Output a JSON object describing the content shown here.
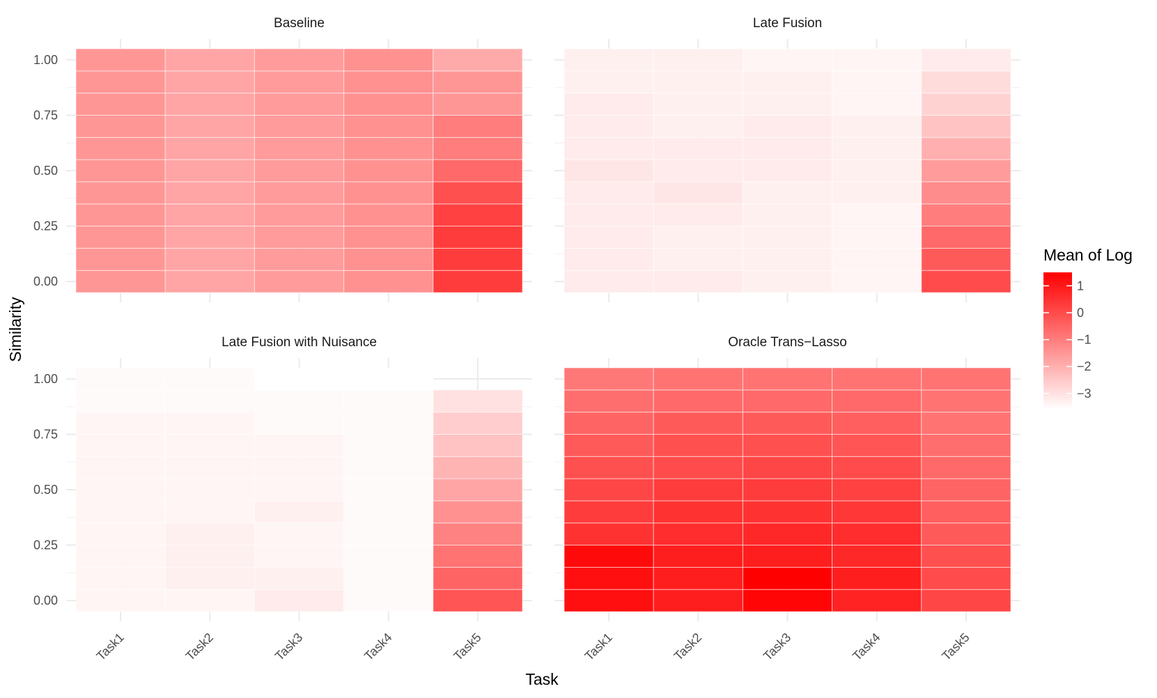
{
  "figure": {
    "ylabel": "Similarity",
    "xlabel": "Task",
    "legend_title": "Mean of Log",
    "legend_ticks": [
      "1",
      "0",
      "−1",
      "−2",
      "−3"
    ]
  },
  "chart_data": {
    "type": "heatmap",
    "x_categories": [
      "Task1",
      "Task2",
      "Task3",
      "Task4",
      "Task5"
    ],
    "y_values": [
      0,
      0.1,
      0.2,
      0.3,
      0.4,
      0.5,
      0.6,
      0.7,
      0.8,
      0.9,
      1.0
    ],
    "y_ticks": [
      0,
      0.25,
      0.5,
      0.75,
      1.0
    ],
    "y_tick_labels": [
      "0.00",
      "0.25",
      "0.50",
      "0.75",
      "1.00"
    ],
    "xlabel": "Task",
    "ylabel": "Similarity",
    "color_scale": {
      "title": "Mean of Log",
      "low": -3.6,
      "high": 1.5,
      "low_color": "#ffffff",
      "high_color": "#ff0000",
      "legend_ticks": [
        1,
        0,
        -1,
        -2,
        -3
      ]
    },
    "grid": true,
    "legend_position": "right",
    "facets": [
      {
        "title": "Baseline",
        "values": [
          [
            -1.5,
            -1.8,
            -1.6,
            -1.4,
            0.3
          ],
          [
            -1.5,
            -1.8,
            -1.6,
            -1.4,
            0.3
          ],
          [
            -1.5,
            -1.8,
            -1.6,
            -1.4,
            0.3
          ],
          [
            -1.5,
            -1.8,
            -1.6,
            -1.4,
            0.2
          ],
          [
            -1.5,
            -1.8,
            -1.6,
            -1.4,
            -0.1
          ],
          [
            -1.5,
            -1.8,
            -1.6,
            -1.4,
            -0.6
          ],
          [
            -1.5,
            -1.8,
            -1.6,
            -1.4,
            -1.0
          ],
          [
            -1.5,
            -1.8,
            -1.6,
            -1.4,
            -1.0
          ],
          [
            -1.5,
            -1.8,
            -1.6,
            -1.4,
            -1.5
          ],
          [
            -1.5,
            -1.8,
            -1.6,
            -1.4,
            -1.5
          ],
          [
            -1.5,
            -1.8,
            -1.6,
            -1.4,
            -1.9
          ]
        ]
      },
      {
        "title": "Late Fusion",
        "values": [
          [
            -3.2,
            -3.2,
            -3.3,
            -3.4,
            0.0
          ],
          [
            -3.2,
            -3.3,
            -3.3,
            -3.4,
            -0.3
          ],
          [
            -3.2,
            -3.3,
            -3.3,
            -3.4,
            -0.6
          ],
          [
            -3.2,
            -3.2,
            -3.3,
            -3.4,
            -1.0
          ],
          [
            -3.2,
            -3.1,
            -3.3,
            -3.3,
            -1.3
          ],
          [
            -3.1,
            -3.2,
            -3.2,
            -3.3,
            -1.6
          ],
          [
            -3.2,
            -3.2,
            -3.2,
            -3.3,
            -2.0
          ],
          [
            -3.2,
            -3.3,
            -3.2,
            -3.3,
            -2.4
          ],
          [
            -3.2,
            -3.3,
            -3.3,
            -3.4,
            -2.7
          ],
          [
            -3.3,
            -3.3,
            -3.3,
            -3.4,
            -2.9
          ],
          [
            -3.3,
            -3.3,
            -3.4,
            -3.4,
            -3.2
          ]
        ]
      },
      {
        "title": "Late Fusion with Nuisance",
        "values": [
          [
            -3.4,
            -3.4,
            -3.2,
            -3.5,
            -0.2
          ],
          [
            -3.4,
            -3.3,
            -3.3,
            -3.5,
            -0.5
          ],
          [
            -3.4,
            -3.3,
            -3.4,
            -3.5,
            -0.8
          ],
          [
            -3.4,
            -3.3,
            -3.4,
            -3.5,
            -1.1
          ],
          [
            -3.4,
            -3.4,
            -3.3,
            -3.5,
            -1.4
          ],
          [
            -3.4,
            -3.4,
            -3.4,
            -3.5,
            -1.8
          ],
          [
            -3.4,
            -3.4,
            -3.4,
            -3.5,
            -2.1
          ],
          [
            -3.4,
            -3.4,
            -3.4,
            -3.5,
            -2.4
          ],
          [
            -3.4,
            -3.4,
            -3.5,
            -3.5,
            -2.6
          ],
          [
            -3.5,
            -3.5,
            -3.5,
            -3.5,
            -3.0
          ],
          [
            -3.5,
            -3.5,
            -3.6,
            -3.6,
            null
          ]
        ]
      },
      {
        "title": "Oracle Trans−Lasso",
        "values": [
          [
            1.2,
            0.9,
            1.4,
            0.8,
            0.1
          ],
          [
            1.2,
            0.9,
            1.5,
            0.9,
            0.0
          ],
          [
            1.3,
            0.9,
            0.9,
            0.7,
            -0.1
          ],
          [
            0.5,
            0.6,
            0.7,
            0.6,
            -0.3
          ],
          [
            0.3,
            0.5,
            0.5,
            0.4,
            -0.4
          ],
          [
            0.1,
            0.3,
            0.3,
            0.2,
            -0.5
          ],
          [
            -0.1,
            0.0,
            0.1,
            0.0,
            -0.6
          ],
          [
            -0.3,
            -0.1,
            -0.1,
            -0.2,
            -0.7
          ],
          [
            -0.5,
            -0.3,
            -0.3,
            -0.4,
            -0.8
          ],
          [
            -0.7,
            -0.6,
            -0.6,
            -0.6,
            -0.8
          ],
          [
            -0.9,
            -0.8,
            -0.8,
            -0.8,
            -0.8
          ]
        ]
      }
    ]
  }
}
